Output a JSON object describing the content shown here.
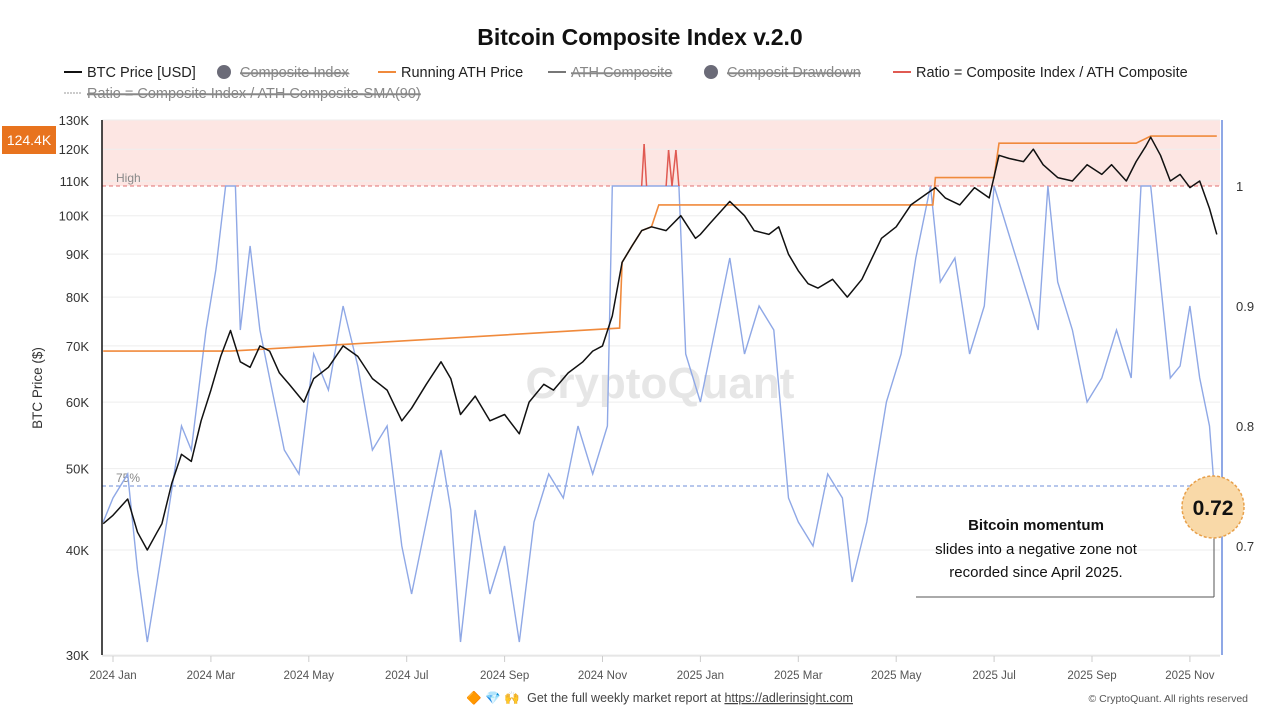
{
  "chart_data": {
    "type": "line",
    "title": "Bitcoin Composite Index v.2.0",
    "ylabel": "BTC Price ($)",
    "y_scale": "log",
    "ylim": [
      30000,
      130000
    ],
    "y2lim": [
      0.62,
      1.05
    ],
    "y_ticks": [
      "30K",
      "40K",
      "50K",
      "60K",
      "70K",
      "80K",
      "90K",
      "100K",
      "110K",
      "120K",
      "130K"
    ],
    "y_tick_values": [
      30,
      40,
      50,
      60,
      70,
      80,
      90,
      100,
      110,
      120,
      130
    ],
    "y2_ticks": [
      "0.7",
      "0.8",
      "0.9",
      "1"
    ],
    "y2_tick_values": [
      0.7,
      0.8,
      0.9,
      1.0
    ],
    "x_ticks": [
      "2024 Jan",
      "2024 Mar",
      "2024 May",
      "2024 Jul",
      "2024 Sep",
      "2024 Nov",
      "2025 Jan",
      "2025 Mar",
      "2025 May",
      "2025 Jul",
      "2025 Sep",
      "2025 Nov"
    ],
    "x_unit": "months since 2024-01-01",
    "current_price_label": "124.4K",
    "high_label": "High",
    "high_value": 1.0,
    "low_label": "75%",
    "low_value": 0.75,
    "current_ratio_label": "0.72",
    "legend": [
      {
        "label": "BTC Price [USD]",
        "color": "#111111",
        "enabled": true,
        "marker": "line"
      },
      {
        "label": "Composite Index",
        "color": "#6b6b78",
        "enabled": false,
        "marker": "dot"
      },
      {
        "label": "Running ATH Price",
        "color": "#f08a3c",
        "enabled": true,
        "marker": "line"
      },
      {
        "label": "ATH Composite",
        "color": "#777777",
        "enabled": false,
        "marker": "line"
      },
      {
        "label": "Composit Drawdown",
        "color": "#6b6b78",
        "enabled": false,
        "marker": "dot"
      },
      {
        "label": "Ratio = Composite Index / ATH Composite",
        "color": "#e05a52",
        "enabled": true,
        "marker": "line"
      },
      {
        "label": "Ratio = Composite Index / ATH Composite-SMA(90)",
        "color": "#999999",
        "enabled": false,
        "marker": "dash"
      }
    ],
    "series": [
      {
        "name": "BTC Price [USD]",
        "unit": "K USD",
        "color": "#111111",
        "x": [
          -0.2,
          0,
          0.3,
          0.5,
          0.7,
          0.9,
          1.0,
          1.2,
          1.4,
          1.6,
          1.8,
          2.0,
          2.2,
          2.4,
          2.6,
          2.8,
          3.0,
          3.2,
          3.4,
          3.6,
          3.9,
          4.1,
          4.4,
          4.7,
          5.0,
          5.3,
          5.6,
          5.9,
          6.1,
          6.4,
          6.7,
          6.9,
          7.1,
          7.4,
          7.7,
          8.0,
          8.3,
          8.5,
          8.8,
          9.0,
          9.3,
          9.6,
          9.8,
          10.0,
          10.2,
          10.4,
          10.6,
          10.8,
          11.0,
          11.3,
          11.6,
          11.9,
          12.0,
          12.2,
          12.6,
          12.9,
          13.1,
          13.4,
          13.6,
          13.8,
          14.0,
          14.2,
          14.4,
          14.7,
          15.0,
          15.3,
          15.7,
          16.0,
          16.3,
          16.6,
          16.8,
          17.0,
          17.3,
          17.6,
          17.9,
          18.1,
          18.3,
          18.6,
          18.8,
          19.0,
          19.3,
          19.6,
          19.9,
          20.2,
          20.4,
          20.7,
          20.9,
          21.1,
          21.2,
          21.4,
          21.6,
          21.8,
          22.0,
          22.2,
          22.4,
          22.55
        ],
        "values": [
          43,
          44,
          46,
          42,
          40,
          42,
          43,
          48,
          52,
          51,
          57,
          62,
          68,
          73,
          67,
          66,
          70,
          69,
          65,
          63,
          60,
          64,
          66,
          70,
          68,
          64,
          62,
          57,
          59,
          63,
          67,
          64,
          58,
          61,
          57,
          58,
          55,
          60,
          63,
          62,
          65,
          67,
          69,
          70,
          76,
          88,
          92,
          96,
          97,
          96,
          100,
          94,
          95,
          98,
          104,
          100,
          96,
          95,
          97,
          90,
          86,
          83,
          82,
          84,
          80,
          84,
          94,
          97,
          103,
          106,
          108,
          105,
          103,
          108,
          105,
          118,
          117,
          116,
          120,
          115,
          111,
          110,
          115,
          112,
          115,
          110,
          116,
          121,
          124,
          118,
          110,
          112,
          108,
          110,
          102,
          95
        ]
      },
      {
        "name": "Running ATH Price",
        "unit": "K USD",
        "color": "#f08a3c",
        "x": [
          -0.2,
          2.4,
          10.35,
          10.4,
          10.6,
          10.8,
          11.0,
          11.15,
          16.75,
          16.8,
          18.0,
          18.1,
          20.9,
          21.2,
          22.55
        ],
        "values": [
          69,
          69,
          73.5,
          88,
          92,
          96,
          97,
          103,
          103,
          111,
          111,
          122,
          122,
          124.4,
          124.4
        ]
      },
      {
        "name": "Ratio = Composite Index / ATH Composite",
        "color": "#8fa8e6",
        "above_high_color": "#e05a52",
        "x": [
          -0.2,
          0,
          0.3,
          0.5,
          0.7,
          0.9,
          1.1,
          1.4,
          1.6,
          1.9,
          2.1,
          2.3,
          2.5,
          2.6,
          2.8,
          3.0,
          3.2,
          3.5,
          3.8,
          4.1,
          4.4,
          4.7,
          5.0,
          5.3,
          5.6,
          5.9,
          6.1,
          6.4,
          6.7,
          6.9,
          7.1,
          7.4,
          7.7,
          8.0,
          8.3,
          8.6,
          8.9,
          9.2,
          9.5,
          9.8,
          10.1,
          10.2,
          10.8,
          10.85,
          10.9,
          11.3,
          11.35,
          11.42,
          11.5,
          11.56,
          11.7,
          12.0,
          12.3,
          12.6,
          12.9,
          13.2,
          13.5,
          13.8,
          14.0,
          14.3,
          14.6,
          14.9,
          15.1,
          15.4,
          15.8,
          16.1,
          16.4,
          16.7,
          16.9,
          17.2,
          17.5,
          17.8,
          18.0,
          18.3,
          18.6,
          18.9,
          19.1,
          19.3,
          19.6,
          19.9,
          20.2,
          20.5,
          20.8,
          21.0,
          21.2,
          21.4,
          21.6,
          21.8,
          22.0,
          22.2,
          22.4,
          22.55
        ],
        "values": [
          0.72,
          0.74,
          0.76,
          0.68,
          0.62,
          0.67,
          0.72,
          0.8,
          0.78,
          0.88,
          0.93,
          1.0,
          1.0,
          0.88,
          0.95,
          0.88,
          0.84,
          0.78,
          0.76,
          0.86,
          0.83,
          0.9,
          0.85,
          0.78,
          0.8,
          0.7,
          0.66,
          0.72,
          0.78,
          0.73,
          0.62,
          0.73,
          0.66,
          0.7,
          0.62,
          0.72,
          0.76,
          0.74,
          0.8,
          0.76,
          0.8,
          1.0,
          1.0,
          1.035,
          1.0,
          1.0,
          1.03,
          1.0,
          1.03,
          1.0,
          0.86,
          0.82,
          0.88,
          0.94,
          0.86,
          0.9,
          0.88,
          0.74,
          0.72,
          0.7,
          0.76,
          0.74,
          0.67,
          0.72,
          0.82,
          0.86,
          0.94,
          1.0,
          0.92,
          0.94,
          0.86,
          0.9,
          1.0,
          0.96,
          0.92,
          0.88,
          1.0,
          0.92,
          0.88,
          0.82,
          0.84,
          0.88,
          0.84,
          1.0,
          1.0,
          0.92,
          0.84,
          0.85,
          0.9,
          0.84,
          0.8,
          0.72
        ]
      }
    ],
    "annotation": {
      "title": "Bitcoin momentum",
      "line1": "slides into a negative zone not",
      "line2": "recorded since April 2025."
    },
    "watermark": "CryptoQuant"
  },
  "footer": {
    "promo_emojis": "🔶 💎 🙌",
    "promo_text": "Get the full weekly market report at ",
    "promo_link": "https://adlerinsight.com",
    "copyright": "© CryptoQuant. All rights reserved"
  },
  "colors": {
    "accent": "#e8731e",
    "high_band": "#fde6e3",
    "ratio": "#8fa8e6",
    "ath": "#f08a3c"
  }
}
